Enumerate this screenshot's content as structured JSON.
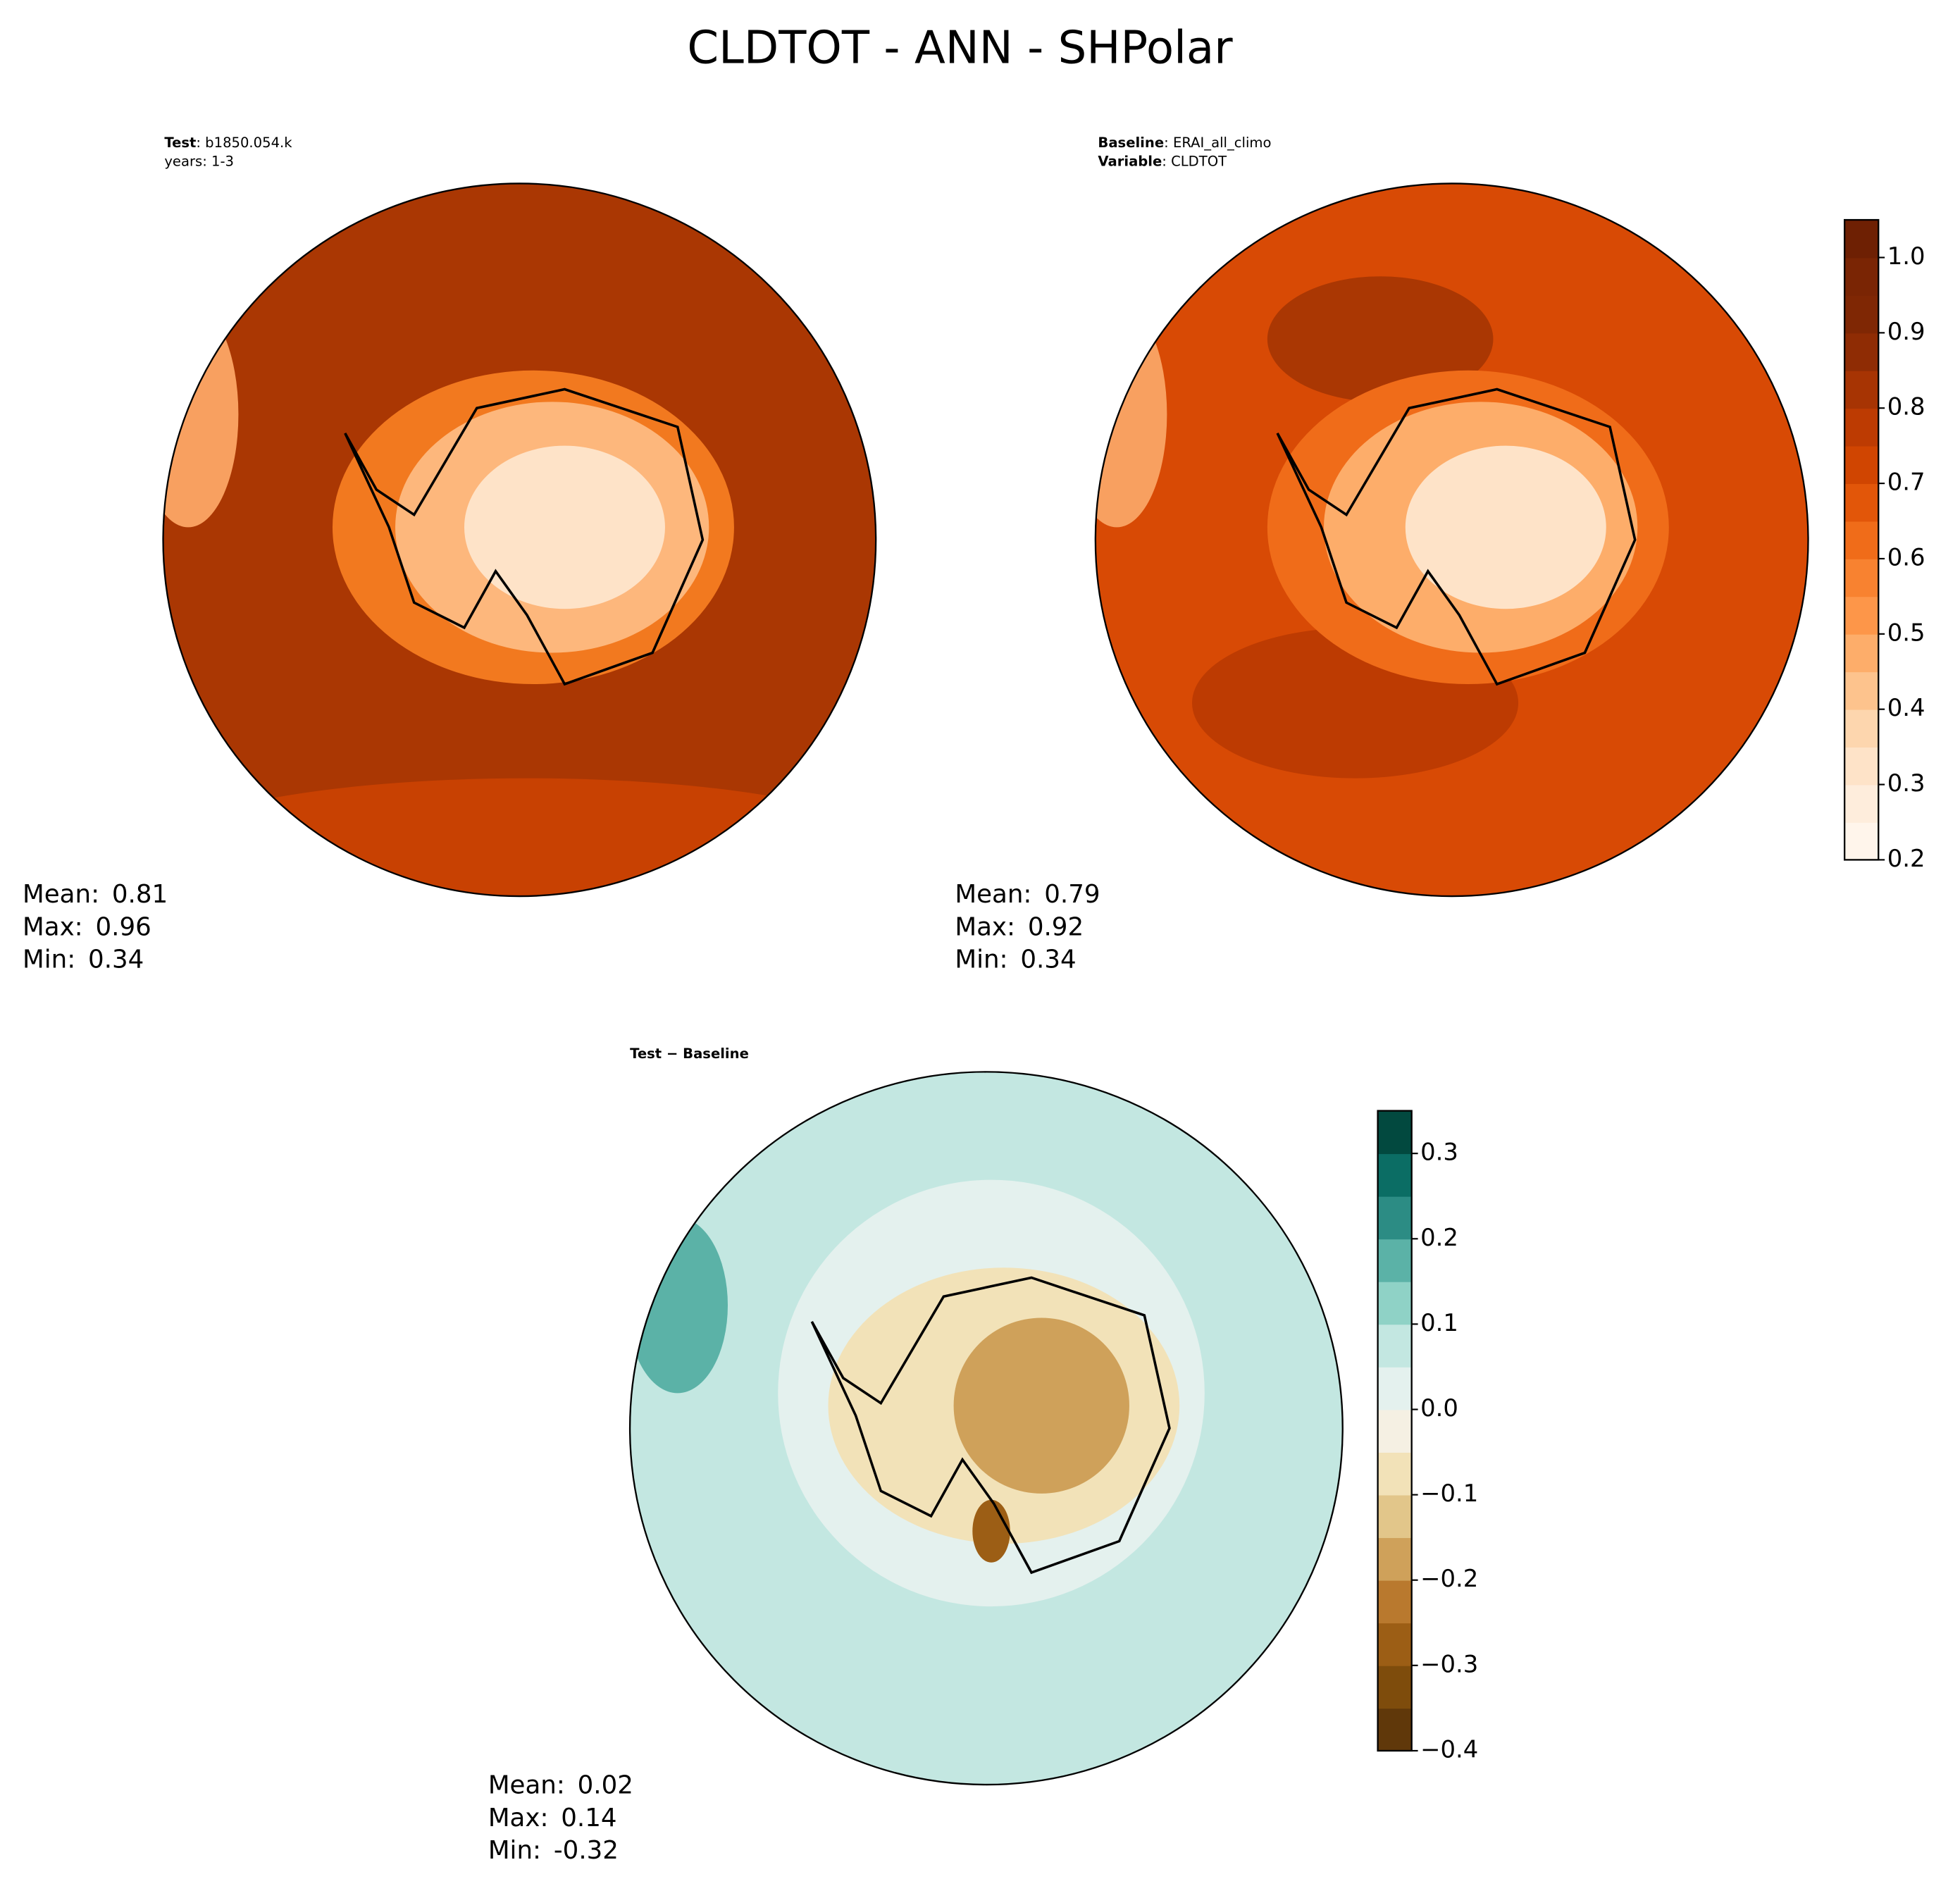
{
  "figure": {
    "title": "CLDTOT - ANN - SHPolar",
    "panels": [
      {
        "header": [
          {
            "key": "Test",
            "text": ": b1850.054.k"
          },
          {
            "text": "years: 1-3"
          }
        ],
        "stats": [
          {
            "label": "Mean:",
            "value": 0.81
          },
          {
            "label": "Max:",
            "value": 0.96
          },
          {
            "label": "Min:",
            "value": 0.34
          }
        ]
      },
      {
        "header": [
          {
            "key": "Baseline",
            "text": ": ERAI_all_climo"
          },
          {
            "key": "Variable",
            "text": ": CLDTOT"
          }
        ],
        "stats": [
          {
            "label": "Mean:",
            "value": 0.79
          },
          {
            "label": "Max:",
            "value": 0.92
          },
          {
            "label": "Min:",
            "value": 0.34
          }
        ]
      },
      {
        "header": [
          {
            "key": "Test − Baseline"
          }
        ],
        "stats": [
          {
            "label": "Mean:",
            "value": 0.02
          },
          {
            "label": "Max:",
            "value": 0.14
          },
          {
            "label": "Min:",
            "value": -0.32
          }
        ]
      }
    ],
    "colorbars": [
      {
        "ylim": [
          0.2,
          1.05
        ],
        "yticks": [
          0.2,
          0.3,
          0.4,
          0.5,
          0.6,
          0.7,
          0.8,
          0.9,
          {
            "value": 1,
            "label": "1.0"
          }
        ],
        "colors": [
          "#fff5eb",
          "#feeddc",
          "#fee3c8",
          "#fdd6ae",
          "#fdc38d",
          "#fdad6a",
          "#fd9649",
          "#f88230",
          "#f06c19",
          "#e25609",
          "#d04501",
          "#bd3b02",
          "#a73403",
          "#8f2c04",
          "#7f2704",
          "#7a2504",
          "#6e2003"
        ]
      },
      {
        "ylim": [
          -0.4,
          0.35
        ],
        "yticks": [
          {
            "value": -0.4,
            "label": "−0.4"
          },
          {
            "value": -0.3,
            "label": "−0.3"
          },
          {
            "value": -0.2,
            "label": "−0.2"
          },
          {
            "value": -0.1,
            "label": "−0.1"
          },
          {
            "value": 0,
            "label": "0.0"
          },
          0.1,
          0.2,
          0.3
        ],
        "colors": [
          "#60380a",
          "#7e4c0c",
          "#9c5e15",
          "#b9792e",
          "#cfa15a",
          "#e2c68a",
          "#f2e2b8",
          "#f5f0e3",
          "#e4f1ee",
          "#c3e7e1",
          "#8fd2c6",
          "#5bb2a7",
          "#2c8c84",
          "#0b6d64",
          "#02493f"
        ]
      }
    ]
  }
}
